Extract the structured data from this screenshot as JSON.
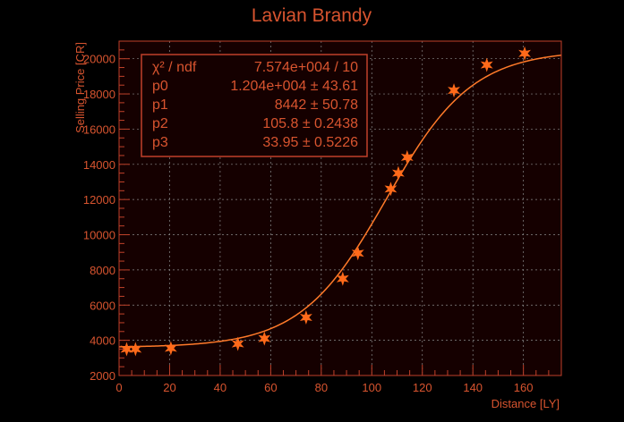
{
  "colors": {
    "background": "#000000",
    "plot_background": "#150000",
    "frame": "#c0412a",
    "text": "#d8542f",
    "grid": "#8a8a8a",
    "curve": "#ff7a2a",
    "marker": "#ff6a1a"
  },
  "chart_data": {
    "type": "scatter",
    "title": "Lavian Brandy",
    "xlabel": "Distance [LY]",
    "ylabel": "Selling Price [CR]",
    "xlim": [
      0,
      175
    ],
    "ylim": [
      2000,
      21000
    ],
    "xticks": [
      0,
      20,
      40,
      60,
      80,
      100,
      120,
      140,
      160
    ],
    "yticks": [
      2000,
      4000,
      6000,
      8000,
      10000,
      12000,
      14000,
      16000,
      18000,
      20000
    ],
    "grid": true,
    "series": [
      {
        "marker": "star",
        "points": [
          {
            "x": 3,
            "y": 3500
          },
          {
            "x": 6.5,
            "y": 3500
          },
          {
            "x": 20.5,
            "y": 3550
          },
          {
            "x": 47,
            "y": 3800
          },
          {
            "x": 57.5,
            "y": 4100
          },
          {
            "x": 74,
            "y": 5300
          },
          {
            "x": 88.5,
            "y": 7500
          },
          {
            "x": 94.5,
            "y": 8950
          },
          {
            "x": 107.5,
            "y": 12600
          },
          {
            "x": 110.5,
            "y": 13500
          },
          {
            "x": 114,
            "y": 14400
          },
          {
            "x": 132.5,
            "y": 18200
          },
          {
            "x": 145.5,
            "y": 19650
          },
          {
            "x": 160.5,
            "y": 20300
          }
        ]
      }
    ],
    "fit": {
      "x_range": [
        0,
        175
      ],
      "params": {
        "p0": 12040,
        "p1": 8442,
        "p2": 105.8,
        "p3": 33.95
      }
    },
    "stats_box": {
      "rows": [
        {
          "label": "χ² / ndf",
          "value": "7.574e+004 / 10"
        },
        {
          "label": "p0",
          "value": "1.204e+004 ± 43.61"
        },
        {
          "label": "p1",
          "value": "8442 ± 50.78"
        },
        {
          "label": "p2",
          "value": "105.8 ± 0.2438"
        },
        {
          "label": "p3",
          "value": "33.95 ± 0.5226"
        }
      ]
    }
  }
}
